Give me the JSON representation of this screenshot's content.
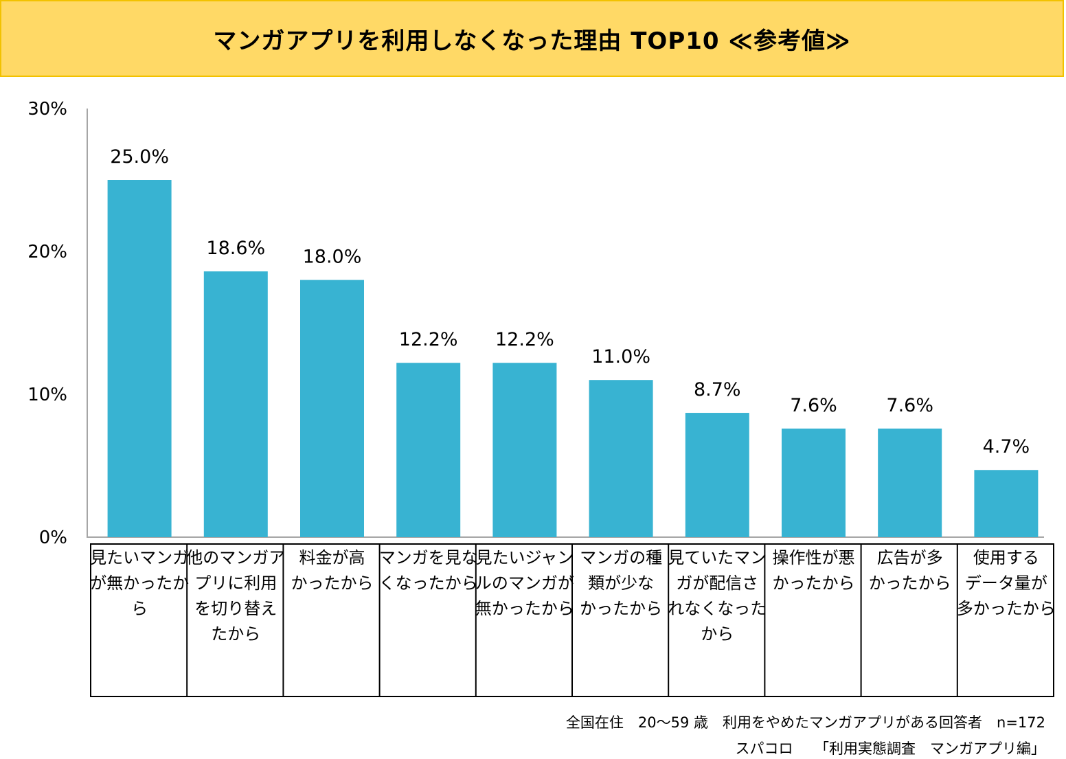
{
  "title": "マンガアプリを利用しなくなった理由 TOP10 ≪参考値≫",
  "footnote": {
    "line1": "全国在住　20～59 歳　利用をやめたマンガアプリがある回答者　n=172",
    "line2": "スパコロ　　「利用実態調査　マンガアプリ編」"
  },
  "colors": {
    "bar": "#38b3d2",
    "banner": "#ffd966",
    "axis": "#a6a6a6"
  },
  "chart_data": {
    "type": "bar",
    "title": "マンガアプリを利用しなくなった理由 TOP10 ≪参考値≫",
    "xlabel": "",
    "ylabel": "",
    "ylim": [
      0,
      30
    ],
    "y_ticks": [
      "0%",
      "10%",
      "20%",
      "30%"
    ],
    "y_tick_values": [
      0,
      10,
      20,
      30
    ],
    "grid": false,
    "categories": [
      [
        "見たいマンガ",
        "が無かったか",
        "ら"
      ],
      [
        "他のマンガア",
        "プリに利用",
        "を切り替え",
        "たから"
      ],
      [
        "料金が高",
        "かったから"
      ],
      [
        "マンガを見な",
        "くなったから"
      ],
      [
        "見たいジャン",
        "ルのマンガが",
        "無かったから"
      ],
      [
        "マンガの種",
        "類が少な",
        "かったから"
      ],
      [
        "見ていたマン",
        "ガが配信さ",
        "れなくなった",
        "から"
      ],
      [
        "操作性が悪",
        "かったから"
      ],
      [
        "広告が多",
        "かったから"
      ],
      [
        "使用する",
        "データ量が",
        "多かったから"
      ]
    ],
    "values": [
      25.0,
      18.6,
      18.0,
      12.2,
      12.2,
      11.0,
      8.7,
      7.6,
      7.6,
      4.7
    ],
    "value_labels": [
      "25.0%",
      "18.6%",
      "18.0%",
      "12.2%",
      "12.2%",
      "11.0%",
      "8.7%",
      "7.6%",
      "7.6%",
      "4.7%"
    ]
  }
}
